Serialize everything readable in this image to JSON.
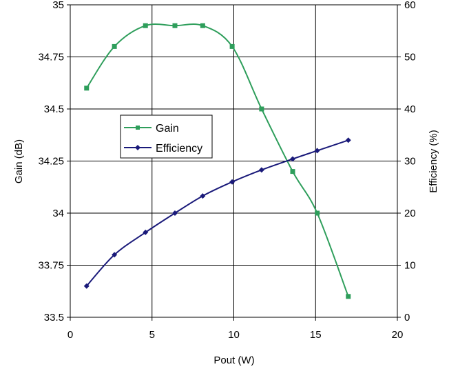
{
  "chart_data": {
    "type": "line",
    "title": "",
    "xlabel": "Pout (W)",
    "ylabel_left": "Gain (dB)",
    "ylabel_right": "Efficiency (%)",
    "xlim": [
      0,
      20
    ],
    "ylim_left": [
      33.5,
      35
    ],
    "ylim_right": [
      0,
      60
    ],
    "x_ticks": [
      0,
      5,
      10,
      15,
      20
    ],
    "y_left_ticks": [
      "33.5",
      "33.75",
      "34",
      "34.25",
      "34.5",
      "34.75",
      "35"
    ],
    "y_right_ticks": [
      "0",
      "10",
      "20",
      "30",
      "40",
      "50",
      "60"
    ],
    "grid": "vertical and horizontal major gridlines",
    "legend_position": "center-left",
    "series": [
      {
        "name": "Gain",
        "axis": "left",
        "color": "#2e9e5b",
        "marker": "square",
        "x": [
          1.0,
          2.7,
          4.6,
          6.4,
          8.1,
          9.9,
          11.7,
          13.6,
          15.1,
          17.0
        ],
        "y": [
          34.6,
          34.8,
          34.9,
          34.9,
          34.9,
          34.8,
          34.5,
          34.2,
          34.0,
          33.6
        ]
      },
      {
        "name": "Efficiency",
        "axis": "right",
        "color": "#1a1a7a",
        "marker": "diamond",
        "x": [
          1.0,
          2.7,
          4.6,
          6.4,
          8.1,
          9.9,
          11.7,
          13.6,
          15.1,
          17.0
        ],
        "y": [
          6,
          12,
          16.3,
          20,
          23.3,
          26,
          28.3,
          30.4,
          32,
          34
        ]
      }
    ]
  }
}
